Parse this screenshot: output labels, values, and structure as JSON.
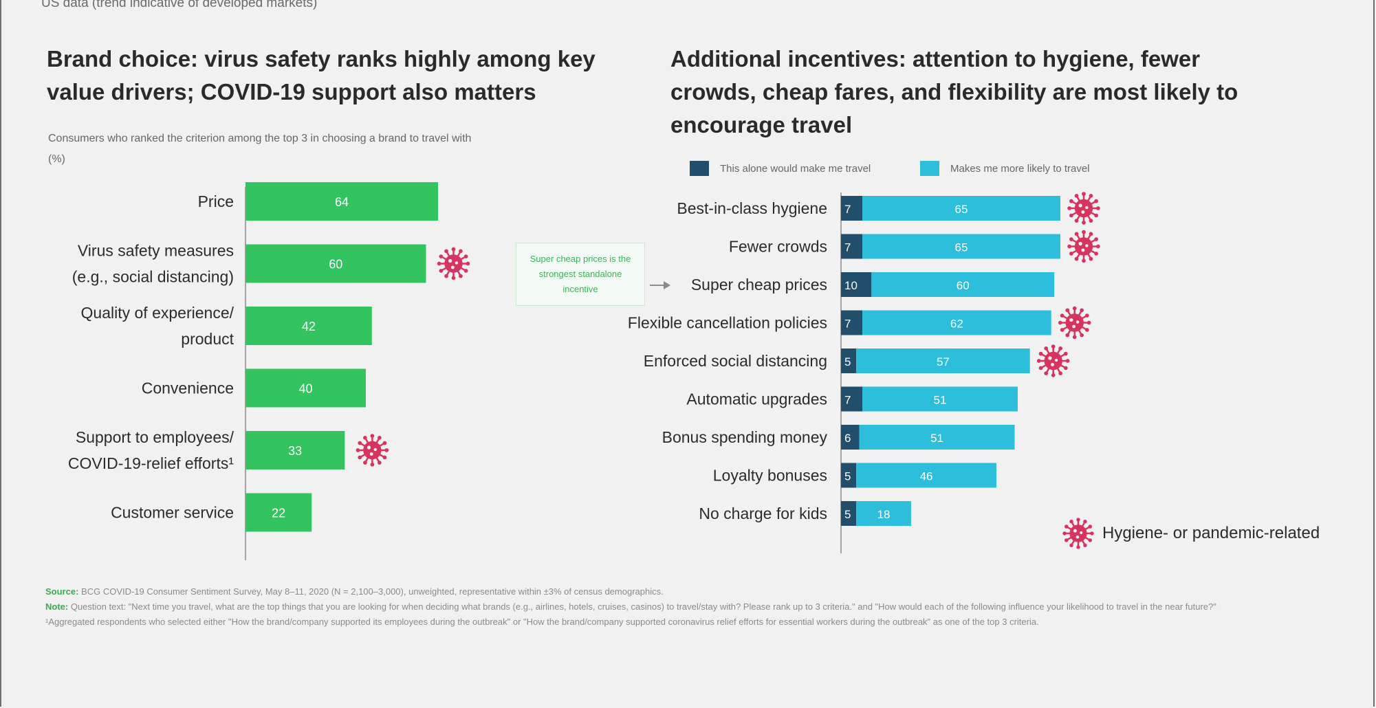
{
  "context_note": "US data (trend indicative of developed markets)",
  "colors": {
    "green_bar": "#33c460",
    "dark_bar": "#204e6b",
    "light_bar": "#2dbedb",
    "virus_icon": "#d6345f",
    "background": "#f1f1f1",
    "callout_text": "#3fb05c"
  },
  "icons": {
    "virus": "virus-icon"
  },
  "chart_data": [
    {
      "type": "bar",
      "orientation": "horizontal",
      "title": "Brand choice: virus safety ranks highly among key value drivers; COVID-19 support also matters",
      "subtitle": "Consumers who ranked the criterion among the top 3 in choosing a brand to travel with (%)",
      "categories": [
        [
          "Price"
        ],
        [
          "Virus safety measures",
          "(e.g., social distancing)"
        ],
        [
          "Quality of experience/",
          "product"
        ],
        [
          "Convenience"
        ],
        [
          "Support to employees/",
          "COVID-19-relief efforts¹"
        ],
        [
          "Customer service"
        ]
      ],
      "values": [
        64,
        60,
        42,
        40,
        33,
        22
      ],
      "hygiene_related": [
        false,
        true,
        false,
        false,
        true,
        false
      ],
      "xlim": [
        0,
        100
      ]
    },
    {
      "type": "bar",
      "orientation": "horizontal",
      "stacked": true,
      "title": "Additional incentives: attention to hygiene, fewer crowds, cheap fares, and flexibility are most likely to encourage travel",
      "categories": [
        "Best-in-class hygiene",
        "Fewer crowds",
        "Super cheap prices",
        "Flexible cancellation policies",
        "Enforced social distancing",
        "Automatic upgrades",
        "Bonus spending money",
        "Loyalty bonuses",
        "No charge for kids"
      ],
      "series": [
        {
          "name": "This alone would make me travel",
          "values": [
            7,
            7,
            10,
            7,
            5,
            7,
            6,
            5,
            5
          ]
        },
        {
          "name": "Makes me more likely to travel",
          "values": [
            65,
            65,
            60,
            62,
            57,
            51,
            51,
            46,
            18
          ]
        }
      ],
      "hygiene_related": [
        true,
        true,
        false,
        true,
        true,
        false,
        false,
        false,
        false
      ],
      "xlim": [
        0,
        100
      ],
      "callout": {
        "text": "Super cheap prices is the strongest standalone incentive",
        "target": "Super cheap prices"
      },
      "hygiene_legend": "Hygiene- or pandemic-related"
    }
  ],
  "footnotes": {
    "source_label": "Source:",
    "source_text": "BCG COVID-19 Consumer Sentiment Survey, May 8–11, 2020 (N = 2,100–3,000), unweighted, representative within ±3% of census demographics.",
    "note_label": "Note:",
    "note_text": "Question text: \"Next time you travel, what are the top things that you are looking for when deciding what brands (e.g., airlines, hotels, cruises, casinos) to travel/stay with? Please rank up to 3 criteria.\" and \"How would each of the following influence your likelihood to travel in the near future?\"",
    "footnote_1": "¹Aggregated respondents who selected either \"How the brand/company supported its employees during the outbreak\" or \"How the brand/company supported coronavirus relief efforts for essential workers during the outbreak\" as one of the top 3 criteria."
  }
}
